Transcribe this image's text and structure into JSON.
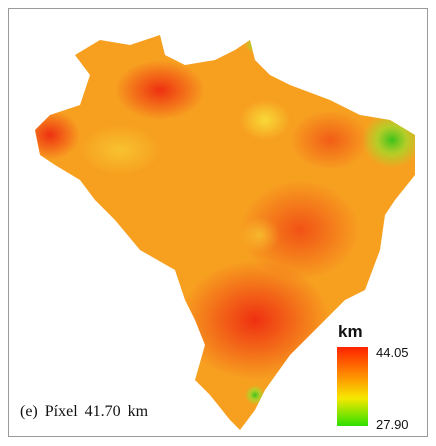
{
  "caption": "(e) Píxel 41.70 km",
  "legend": {
    "title": "km",
    "max_label": "44.05",
    "min_label": "27.90"
  }
}
